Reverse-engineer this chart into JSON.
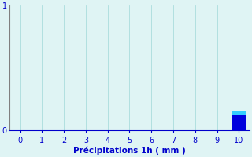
{
  "categories": [
    0,
    1,
    2,
    3,
    4,
    5,
    6,
    7,
    8,
    9,
    10
  ],
  "values": [
    0,
    0,
    0,
    0,
    0,
    0,
    0,
    0,
    0,
    0,
    0.15
  ],
  "bar_color": "#0000dd",
  "bar_top_color": "#33ccff",
  "background_color": "#dff4f4",
  "axis_color": "#0000cc",
  "spine_color": "#808080",
  "grid_color": "#aadddd",
  "xlabel": "Précipitations 1h ( mm )",
  "xlabel_fontsize": 7.5,
  "tick_fontsize": 7,
  "ylim": [
    0,
    1
  ],
  "xlim": [
    -0.5,
    10.5
  ],
  "yticks": [
    0,
    1
  ],
  "bar_width": 0.6
}
